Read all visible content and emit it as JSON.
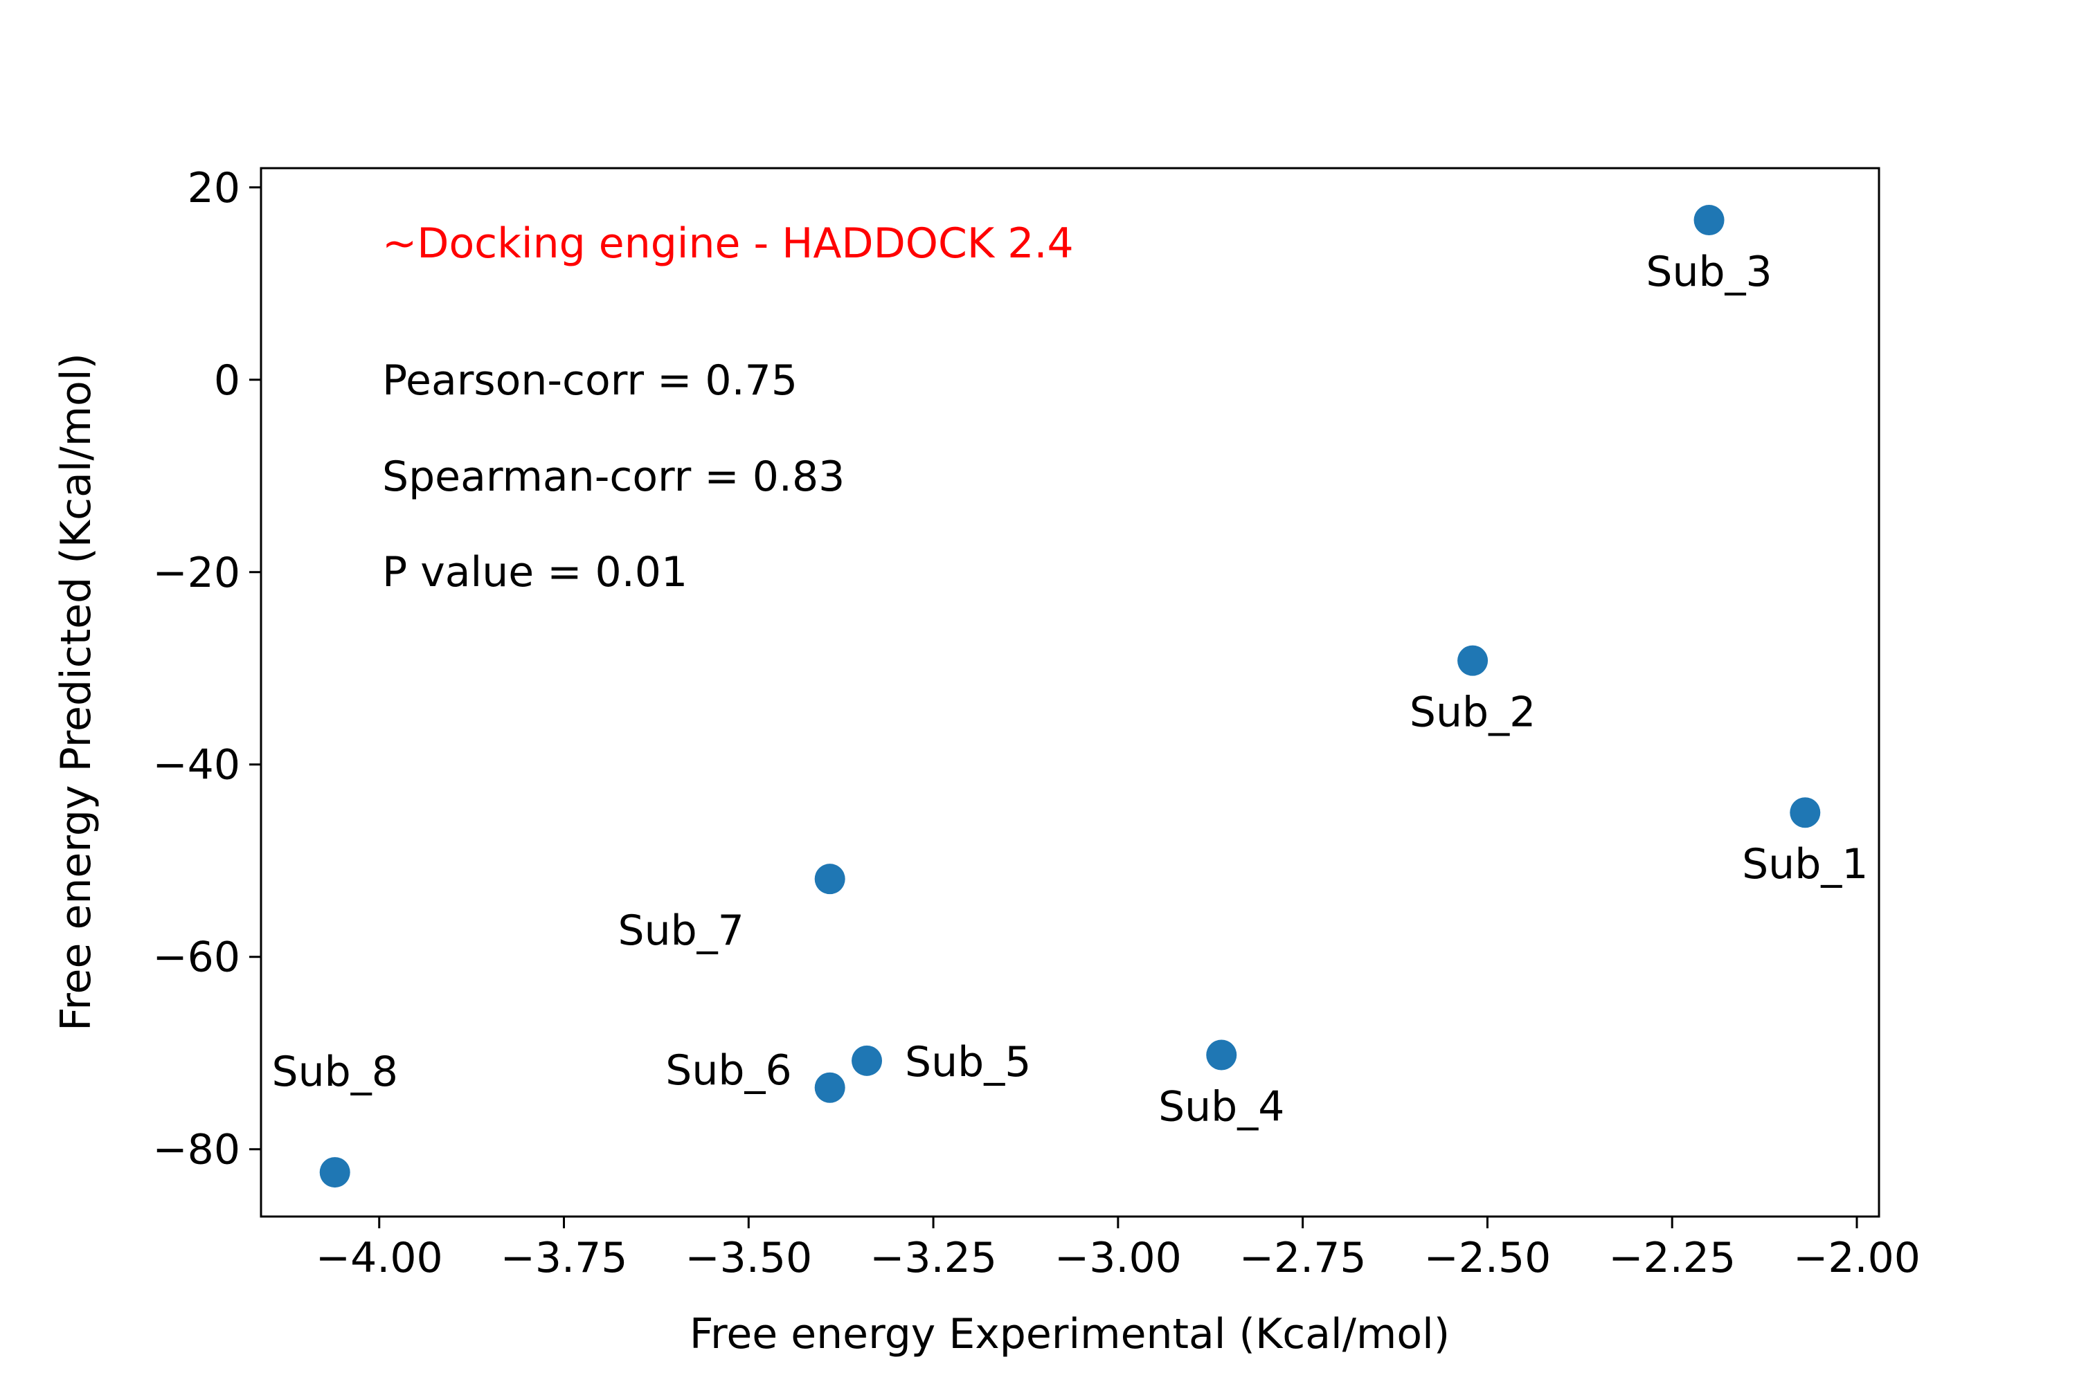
{
  "chart_data": {
    "type": "scatter",
    "title": "",
    "xlabel": "Free energy Experimental (Kcal/mol)",
    "ylabel": "Free energy Predicted (Kcal/mol)",
    "xlim": [
      -4.16,
      -1.97
    ],
    "ylim": [
      -87.0,
      22.0
    ],
    "x_ticks": [
      -4.0,
      -3.75,
      -3.5,
      -3.25,
      -3.0,
      -2.75,
      -2.5,
      -2.25,
      -2.0
    ],
    "x_tick_labels": [
      "−4.00",
      "−3.75",
      "−3.50",
      "−3.25",
      "−3.00",
      "−2.75",
      "−2.50",
      "−2.25",
      "−2.00"
    ],
    "y_ticks": [
      20,
      0,
      -20,
      -40,
      -60,
      -80
    ],
    "y_tick_labels": [
      "20",
      "0",
      "−20",
      "−40",
      "−60",
      "−80"
    ],
    "grid": false,
    "marker_color": "#1f77b4",
    "points": [
      {
        "label": "Sub_1",
        "x": -2.07,
        "y": -45.0
      },
      {
        "label": "Sub_2",
        "x": -2.52,
        "y": -29.2
      },
      {
        "label": "Sub_3",
        "x": -2.2,
        "y": 16.6
      },
      {
        "label": "Sub_4",
        "x": -2.86,
        "y": -70.2
      },
      {
        "label": "Sub_5",
        "x": -3.34,
        "y": -70.8
      },
      {
        "label": "Sub_6",
        "x": -3.39,
        "y": -73.6
      },
      {
        "label": "Sub_7",
        "x": -3.39,
        "y": -51.9
      },
      {
        "label": "Sub_8",
        "x": -4.06,
        "y": -82.4
      }
    ],
    "annotations": [
      {
        "text": "~Docking engine - HADDOCK 2.4",
        "color": "#ff0000"
      },
      {
        "text": "Pearson-corr = 0.75",
        "color": "#000000"
      },
      {
        "text": "Spearman-corr = 0.83",
        "color": "#000000"
      },
      {
        "text": "P value = 0.01",
        "color": "#000000"
      }
    ]
  }
}
